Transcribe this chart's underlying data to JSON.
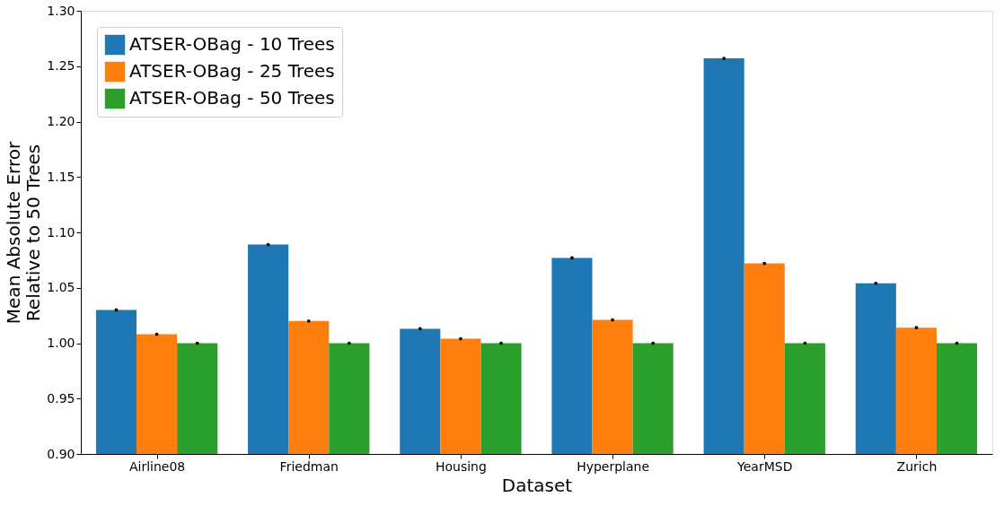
{
  "chart_data": {
    "type": "bar",
    "xlabel": "Dataset",
    "ylabel": "Mean Absolute Error\nRelative to 50 Trees",
    "categories": [
      "Airline08",
      "Friedman",
      "Housing",
      "Hyperplane",
      "YearMSD",
      "Zurich"
    ],
    "series": [
      {
        "name": "ATSER-OBag - 10 Trees",
        "color": "#1f77b4",
        "values": [
          1.03,
          1.089,
          1.013,
          1.077,
          1.257,
          1.054
        ],
        "errors": [
          0,
          0,
          0,
          0,
          0,
          0
        ]
      },
      {
        "name": "ATSER-OBag - 25 Trees",
        "color": "#ff7f0e",
        "values": [
          1.008,
          1.02,
          1.004,
          1.021,
          1.072,
          1.014
        ],
        "errors": [
          0,
          0,
          0,
          0,
          0,
          0
        ]
      },
      {
        "name": "ATSER-OBag - 50 Trees",
        "color": "#2ca02c",
        "values": [
          1.0,
          1.0,
          1.0,
          1.0,
          1.0,
          1.0
        ],
        "errors": [
          0,
          0,
          0,
          0,
          0,
          0
        ]
      }
    ],
    "ylim": [
      0.9,
      1.3
    ],
    "yticks": [
      {
        "value": 0.9,
        "label": "0.90"
      },
      {
        "value": 0.95,
        "label": "0.95"
      },
      {
        "value": 1.0,
        "label": "1.00"
      },
      {
        "value": 1.05,
        "label": "1.05"
      },
      {
        "value": 1.1,
        "label": "1.10"
      },
      {
        "value": 1.15,
        "label": "1.15"
      },
      {
        "value": 1.2,
        "label": "1.20"
      },
      {
        "value": 1.25,
        "label": "1.25"
      },
      {
        "value": 1.3,
        "label": "1.30"
      }
    ],
    "legend": "top left",
    "grid": false
  }
}
